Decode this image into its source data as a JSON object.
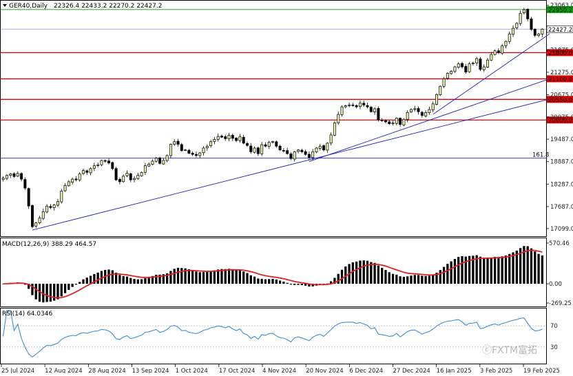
{
  "main": {
    "header": {
      "symbol": "GER40,Daily",
      "ohlc": "22326.4 22433.2 22270.2 22427.2"
    },
    "price_axis": {
      "ticks": [
        {
          "value": 23063,
          "label": "23063.0"
        },
        {
          "value": 22427.2,
          "label": "22427.2"
        },
        {
          "value": 21875,
          "label": "21875.0"
        },
        {
          "value": 21275,
          "label": "21275.0"
        },
        {
          "value": 20675,
          "label": "20675.0"
        },
        {
          "value": 20075,
          "label": "20075.0"
        },
        {
          "value": 19487,
          "label": "19487.0"
        },
        {
          "value": 18887,
          "label": "18887.0"
        },
        {
          "value": 18287,
          "label": "18287.0"
        },
        {
          "value": 17687,
          "label": "17687.0"
        },
        {
          "value": 17099,
          "label": "17099.0"
        }
      ]
    },
    "fib_label": "161.8",
    "watermark": "ⓒFXTM富拓"
  },
  "macd": {
    "title": "MACD(12,26,9) 388.29 464.57",
    "axis_ticks": [
      {
        "value": 570.46,
        "label": "570.46"
      },
      {
        "value": 0,
        "label": "0.00"
      },
      {
        "value": -269.25,
        "label": "-269.25"
      }
    ]
  },
  "rsi": {
    "title": "RSI(14) 64.0346",
    "axis_ticks": [
      {
        "value": 70,
        "label": "70"
      },
      {
        "value": 30,
        "label": "30"
      }
    ]
  },
  "date_axis": {
    "labels": [
      "25 Jul 2024",
      "12 Aug 2024",
      "28 Aug 2024",
      "13 Sep 2024",
      "1 Oct 2024",
      "17 Oct 2024",
      "4 Nov 2024",
      "20 Nov 2024",
      "6 Dec 2024",
      "27 Dec 2024",
      "16 Jan 2025",
      "3 Feb 2025",
      "19 Feb 2025"
    ]
  },
  "colors": {
    "bull_fill": "#e8f0b0",
    "candle_line": "#000000",
    "level_red": "#e00000",
    "trend_blue": "#2020c0",
    "signal_red": "#e02020",
    "rsi_blue": "#3b8fd8",
    "current_price_line": "#a0a0e0"
  },
  "chart_data": [
    {
      "type": "candlestick",
      "title": "GER40,Daily",
      "ylim": [
        16950,
        23150
      ],
      "horizontal_levels": [
        {
          "label": "22950.2",
          "value": 22950.2,
          "color": "#00a000",
          "style": "price-line"
        },
        {
          "label": "22427.2",
          "value": 22427.2,
          "color": "#a0a0e0",
          "style": "current-price"
        },
        {
          "label": "21800.0",
          "value": 21800.0,
          "color": "#e00000",
          "style": "resistance"
        },
        {
          "label": "21100.0",
          "value": 21100.0,
          "color": "#e00000",
          "style": "resistance"
        },
        {
          "label": "20550.0",
          "value": 20550.0,
          "color": "#e00000",
          "style": "resistance"
        },
        {
          "label": "20000.0",
          "value": 20000.0,
          "color": "#e00000",
          "style": "resistance"
        },
        {
          "label": "161.8",
          "value": 18980.0,
          "color": "#2020c0",
          "style": "fibonacci"
        }
      ],
      "trendlines": [
        {
          "from_bar": 8,
          "from_price": 17060,
          "to_bar": 150,
          "to_price": 20560
        },
        {
          "from_bar": 84,
          "from_price": 18890,
          "to_bar": 150,
          "to_price": 21100
        },
        {
          "from_bar": 118,
          "from_price": 20150,
          "to_bar": 150,
          "to_price": 22300
        }
      ],
      "closes": [
        18450,
        18520,
        18560,
        18490,
        18570,
        18420,
        18180,
        17700,
        17150,
        17250,
        17380,
        17550,
        17700,
        17660,
        17730,
        17820,
        18100,
        18250,
        18350,
        18420,
        18400,
        18560,
        18650,
        18600,
        18700,
        18780,
        18800,
        18920,
        18900,
        18850,
        18700,
        18400,
        18350,
        18500,
        18580,
        18400,
        18440,
        18520,
        18600,
        18780,
        18820,
        18900,
        18980,
        18840,
        18920,
        19050,
        19350,
        19420,
        19350,
        19180,
        19200,
        19110,
        19080,
        19050,
        19120,
        19250,
        19300,
        19420,
        19480,
        19560,
        19540,
        19500,
        19590,
        19510,
        19450,
        19550,
        19380,
        19320,
        19150,
        19250,
        19100,
        19340,
        19300,
        19400,
        19420,
        19300,
        19200,
        19180,
        19100,
        18970,
        19150,
        19200,
        19150,
        19080,
        19000,
        19150,
        19250,
        19300,
        19200,
        19380,
        19600,
        19920,
        20150,
        20350,
        20380,
        20400,
        20400,
        20350,
        20450,
        20400,
        20350,
        20220,
        20300,
        20010,
        19980,
        19950,
        19900,
        19920,
        20050,
        19880,
        20020,
        20200,
        20280,
        20300,
        20220,
        20120,
        20200,
        20280,
        20430,
        20680,
        20900,
        21100,
        21250,
        21300,
        21420,
        21500,
        21420,
        21280,
        21500,
        21520,
        21640,
        21350,
        21420,
        21600,
        21750,
        21850,
        21800,
        21980,
        22100,
        22300,
        22450,
        22580,
        22850,
        22950,
        22700,
        22420,
        22260,
        22300,
        22427
      ]
    },
    {
      "type": "bar",
      "title": "MACD(12,26,9)",
      "series": [
        {
          "name": "MACD",
          "value": 388.29
        },
        {
          "name": "Signal",
          "value": 464.57
        }
      ]
    },
    {
      "type": "line",
      "title": "RSI(14)",
      "ylim": [
        0,
        100
      ],
      "levels": [
        70,
        30
      ],
      "last_value": 64.0346
    }
  ]
}
